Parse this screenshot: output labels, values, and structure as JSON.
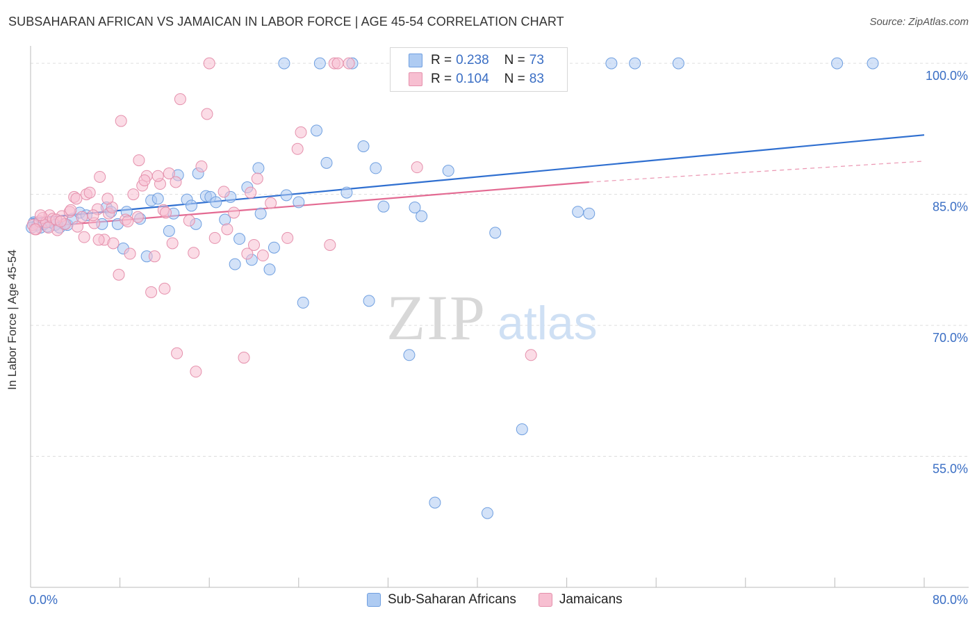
{
  "title": "SUBSAHARAN AFRICAN VS JAMAICAN IN LABOR FORCE | AGE 45-54 CORRELATION CHART",
  "source": "Source: ZipAtlas.com",
  "legend": {
    "rows": [
      {
        "r_label": "R =",
        "r_value": "0.238",
        "n_label": "N =",
        "n_value": "73",
        "color": "#aecbf2",
        "border": "#6f9fe0"
      },
      {
        "r_label": "R =",
        "r_value": "0.104",
        "n_label": "N =",
        "n_value": "83",
        "color": "#f7bfd1",
        "border": "#e590ac"
      }
    ]
  },
  "bottom_legend": [
    {
      "label": "Sub-Saharan Africans",
      "color": "#aecbf2",
      "border": "#6f9fe0"
    },
    {
      "label": "Jamaicans",
      "color": "#f7bfd1",
      "border": "#e590ac"
    }
  ],
  "chart_data": {
    "type": "scatter",
    "ylabel": "In Labor Force | Age 45-54",
    "xlim": [
      0,
      80
    ],
    "ylim": [
      40,
      102
    ],
    "x_tick_labels": [
      "0.0%",
      "80.0%"
    ],
    "y_tick_labels": [
      "100.0%",
      "85.0%",
      "70.0%",
      "55.0%"
    ],
    "y_ticks": [
      100,
      85,
      70,
      55
    ],
    "watermark": "ZIPatlas",
    "series": [
      {
        "name": "Sub-Saharan Africans",
        "color": "#aecbf2",
        "stroke": "#6f9fe0",
        "trend_color": "#2f6fd0",
        "trend": [
          [
            0,
            82.2
          ],
          [
            80,
            91.8
          ]
        ],
        "points": [
          [
            0.3,
            81.8
          ],
          [
            0.6,
            81.5
          ],
          [
            0.9,
            81.2
          ],
          [
            1.2,
            81.6
          ],
          [
            1.5,
            81.3
          ],
          [
            1.8,
            81.8
          ],
          [
            2.2,
            81.5
          ],
          [
            2.6,
            81.2
          ],
          [
            3.0,
            81.6
          ],
          [
            3.3,
            81.5
          ],
          [
            3.8,
            82.2
          ],
          [
            4.4,
            82.9
          ],
          [
            5.0,
            82.6
          ],
          [
            6.4,
            81.6
          ],
          [
            6.8,
            83.5
          ],
          [
            7.2,
            83.0
          ],
          [
            7.8,
            81.6
          ],
          [
            8.3,
            78.8
          ],
          [
            8.6,
            83.0
          ],
          [
            9.8,
            82.2
          ],
          [
            10.4,
            77.9
          ],
          [
            10.8,
            84.3
          ],
          [
            11.4,
            84.5
          ],
          [
            12.4,
            80.8
          ],
          [
            12.8,
            82.8
          ],
          [
            13.2,
            87.2
          ],
          [
            14.0,
            84.4
          ],
          [
            14.4,
            83.7
          ],
          [
            14.8,
            81.6
          ],
          [
            15.0,
            87.4
          ],
          [
            15.7,
            84.8
          ],
          [
            16.1,
            84.7
          ],
          [
            16.6,
            84.1
          ],
          [
            17.4,
            82.1
          ],
          [
            17.9,
            84.7
          ],
          [
            18.3,
            77.0
          ],
          [
            18.7,
            79.9
          ],
          [
            19.4,
            85.8
          ],
          [
            19.8,
            77.5
          ],
          [
            20.4,
            88.0
          ],
          [
            20.6,
            82.8
          ],
          [
            21.4,
            76.4
          ],
          [
            21.8,
            78.9
          ],
          [
            22.9,
            84.9
          ],
          [
            24.0,
            84.1
          ],
          [
            24.4,
            72.6
          ],
          [
            25.6,
            92.3
          ],
          [
            26.5,
            88.6
          ],
          [
            28.3,
            85.2
          ],
          [
            29.8,
            90.5
          ],
          [
            30.3,
            72.8
          ],
          [
            30.9,
            88.0
          ],
          [
            31.6,
            83.6
          ],
          [
            33.9,
            66.6
          ],
          [
            34.4,
            83.5
          ],
          [
            35.0,
            82.5
          ],
          [
            36.2,
            49.7
          ],
          [
            37.4,
            87.7
          ],
          [
            40.9,
            48.5
          ],
          [
            41.6,
            80.6
          ],
          [
            44.0,
            58.1
          ],
          [
            49.0,
            83.0
          ],
          [
            50.0,
            82.8
          ],
          [
            22.7,
            100.0
          ],
          [
            25.9,
            100.0
          ],
          [
            28.8,
            100.0
          ],
          [
            43.7,
            100.0
          ],
          [
            52.0,
            100.0
          ],
          [
            54.1,
            100.0
          ],
          [
            58.0,
            100.0
          ],
          [
            72.2,
            100.0
          ],
          [
            75.4,
            100.0
          ],
          [
            0.1,
            81.2
          ]
        ]
      },
      {
        "name": "Jamaicans",
        "color": "#f7bfd1",
        "stroke": "#e590ac",
        "trend_color": "#e36a92",
        "trend": [
          [
            0,
            81.2
          ],
          [
            50,
            86.4
          ]
        ],
        "trend_dashed": [
          [
            50,
            86.4
          ],
          [
            80,
            88.8
          ]
        ],
        "points": [
          [
            0.2,
            81.5
          ],
          [
            0.5,
            81.0
          ],
          [
            0.8,
            81.9
          ],
          [
            1.1,
            82.3
          ],
          [
            1.4,
            81.8
          ],
          [
            1.7,
            82.6
          ],
          [
            2.0,
            82.2
          ],
          [
            2.4,
            80.9
          ],
          [
            2.8,
            82.5
          ],
          [
            3.1,
            81.6
          ],
          [
            3.5,
            83.0
          ],
          [
            3.9,
            84.7
          ],
          [
            4.2,
            81.3
          ],
          [
            4.6,
            82.4
          ],
          [
            5.0,
            85.0
          ],
          [
            5.3,
            85.2
          ],
          [
            5.7,
            81.7
          ],
          [
            6.0,
            83.3
          ],
          [
            6.2,
            87.0
          ],
          [
            6.6,
            79.8
          ],
          [
            7.0,
            82.8
          ],
          [
            7.4,
            79.4
          ],
          [
            7.9,
            75.8
          ],
          [
            8.1,
            93.4
          ],
          [
            8.5,
            82.1
          ],
          [
            8.9,
            78.2
          ],
          [
            9.2,
            85.0
          ],
          [
            9.7,
            88.9
          ],
          [
            10.0,
            86.0
          ],
          [
            10.4,
            87.1
          ],
          [
            10.8,
            73.8
          ],
          [
            11.1,
            77.9
          ],
          [
            11.6,
            86.2
          ],
          [
            12.0,
            74.2
          ],
          [
            12.4,
            87.4
          ],
          [
            12.7,
            79.4
          ],
          [
            13.1,
            66.8
          ],
          [
            13.4,
            95.9
          ],
          [
            14.2,
            82.0
          ],
          [
            14.6,
            78.3
          ],
          [
            14.8,
            64.7
          ],
          [
            15.3,
            88.2
          ],
          [
            15.8,
            94.2
          ],
          [
            16.5,
            80.0
          ],
          [
            17.3,
            85.3
          ],
          [
            17.6,
            81.0
          ],
          [
            18.2,
            82.9
          ],
          [
            19.1,
            66.3
          ],
          [
            19.4,
            78.2
          ],
          [
            19.7,
            85.2
          ],
          [
            20.0,
            79.2
          ],
          [
            20.3,
            86.8
          ],
          [
            20.8,
            78.0
          ],
          [
            21.5,
            84.0
          ],
          [
            23.0,
            80.0
          ],
          [
            23.9,
            90.2
          ],
          [
            24.2,
            92.1
          ],
          [
            26.8,
            79.2
          ],
          [
            34.6,
            88.1
          ],
          [
            44.8,
            66.6
          ],
          [
            16.0,
            100.0
          ],
          [
            27.2,
            100.0
          ],
          [
            27.5,
            100.0
          ],
          [
            28.5,
            100.0
          ],
          [
            6.1,
            79.8
          ],
          [
            7.3,
            83.5
          ],
          [
            9.6,
            82.4
          ],
          [
            11.9,
            83.2
          ],
          [
            13.0,
            86.4
          ],
          [
            2.3,
            82.1
          ],
          [
            3.6,
            83.2
          ],
          [
            4.8,
            80.1
          ],
          [
            5.6,
            82.6
          ],
          [
            6.9,
            84.5
          ],
          [
            8.7,
            81.9
          ],
          [
            10.2,
            86.6
          ],
          [
            11.4,
            87.1
          ],
          [
            12.1,
            82.9
          ],
          [
            0.9,
            82.6
          ],
          [
            1.6,
            81.2
          ],
          [
            2.7,
            81.9
          ],
          [
            4.1,
            84.5
          ],
          [
            0.4,
            81.0
          ]
        ]
      }
    ]
  }
}
